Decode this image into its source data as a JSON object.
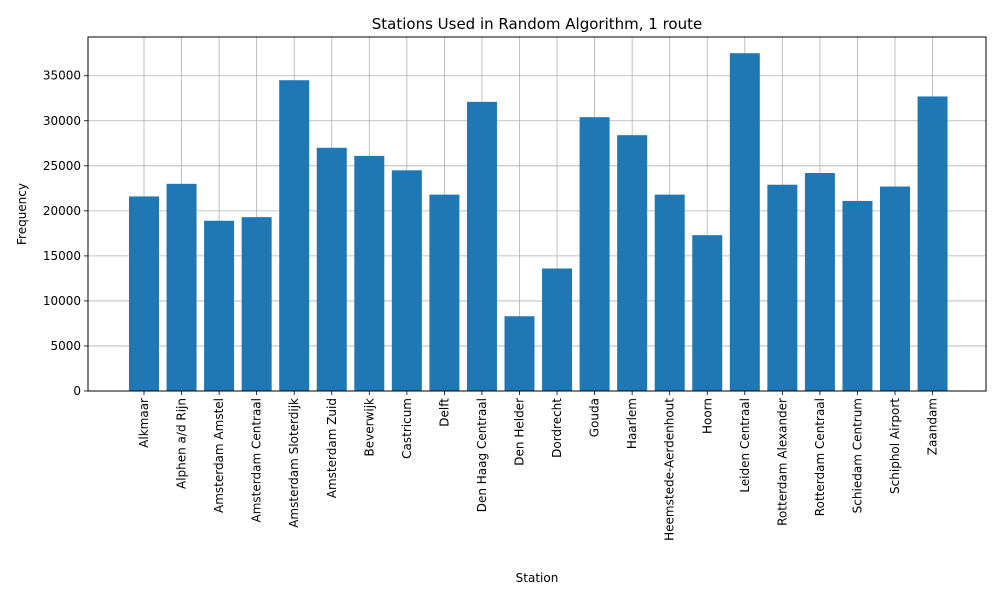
{
  "chart_data": {
    "type": "bar",
    "title": "Stations Used in Random Algorithm, 1 route",
    "xlabel": "Station",
    "ylabel": "Frequency",
    "ylim": [
      0,
      39300
    ],
    "yticks": [
      0,
      5000,
      10000,
      15000,
      20000,
      25000,
      30000,
      35000
    ],
    "grid": true,
    "bar_color": "#1f77b4",
    "categories": [
      "Alkmaar",
      "Alphen a/d Rijn",
      "Amsterdam Amstel",
      "Amsterdam Centraal",
      "Amsterdam Sloterdijk",
      "Amsterdam Zuid",
      "Beverwijk",
      "Castricum",
      "Delft",
      "Den Haag Centraal",
      "Den Helder",
      "Dordrecht",
      "Gouda",
      "Haarlem",
      "Heemstede-Aerdenhout",
      "Hoorn",
      "Leiden Centraal",
      "Rotterdam Alexander",
      "Rotterdam Centraal",
      "Schiedam Centrum",
      "Schiphol Airport",
      "Zaandam"
    ],
    "values": [
      21600,
      23000,
      18900,
      19300,
      34500,
      27000,
      26100,
      24500,
      21800,
      32100,
      8300,
      13600,
      30400,
      28400,
      21800,
      17300,
      37500,
      22900,
      24200,
      21100,
      22700,
      32700
    ]
  }
}
